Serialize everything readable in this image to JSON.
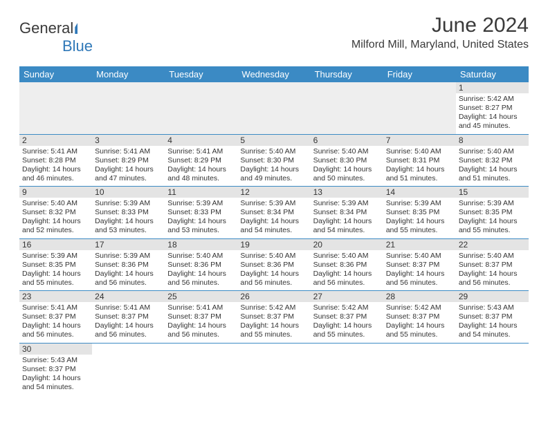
{
  "brand": {
    "part1": "General",
    "part2": "Blue"
  },
  "title": "June 2024",
  "location": "Milford Mill, Maryland, United States",
  "colors": {
    "header_bg": "#3b8ac4",
    "header_text": "#ffffff",
    "daynum_bg": "#e4e4e4",
    "blank_bg": "#eeeeee",
    "row_border": "#3b8ac4",
    "text": "#333333",
    "background": "#ffffff",
    "logo_shape": "#2f78b8"
  },
  "typography": {
    "title_fontsize": 30,
    "location_fontsize": 16,
    "dayhead_fontsize": 13,
    "daynum_fontsize": 12,
    "body_fontsize": 10.5,
    "font_family": "Arial"
  },
  "day_headers": [
    "Sunday",
    "Monday",
    "Tuesday",
    "Wednesday",
    "Thursday",
    "Friday",
    "Saturday"
  ],
  "weeks": [
    [
      null,
      null,
      null,
      null,
      null,
      null,
      {
        "n": "1",
        "sr": "Sunrise: 5:42 AM",
        "ss": "Sunset: 8:27 PM",
        "d1": "Daylight: 14 hours",
        "d2": "and 45 minutes."
      }
    ],
    [
      {
        "n": "2",
        "sr": "Sunrise: 5:41 AM",
        "ss": "Sunset: 8:28 PM",
        "d1": "Daylight: 14 hours",
        "d2": "and 46 minutes."
      },
      {
        "n": "3",
        "sr": "Sunrise: 5:41 AM",
        "ss": "Sunset: 8:29 PM",
        "d1": "Daylight: 14 hours",
        "d2": "and 47 minutes."
      },
      {
        "n": "4",
        "sr": "Sunrise: 5:41 AM",
        "ss": "Sunset: 8:29 PM",
        "d1": "Daylight: 14 hours",
        "d2": "and 48 minutes."
      },
      {
        "n": "5",
        "sr": "Sunrise: 5:40 AM",
        "ss": "Sunset: 8:30 PM",
        "d1": "Daylight: 14 hours",
        "d2": "and 49 minutes."
      },
      {
        "n": "6",
        "sr": "Sunrise: 5:40 AM",
        "ss": "Sunset: 8:30 PM",
        "d1": "Daylight: 14 hours",
        "d2": "and 50 minutes."
      },
      {
        "n": "7",
        "sr": "Sunrise: 5:40 AM",
        "ss": "Sunset: 8:31 PM",
        "d1": "Daylight: 14 hours",
        "d2": "and 51 minutes."
      },
      {
        "n": "8",
        "sr": "Sunrise: 5:40 AM",
        "ss": "Sunset: 8:32 PM",
        "d1": "Daylight: 14 hours",
        "d2": "and 51 minutes."
      }
    ],
    [
      {
        "n": "9",
        "sr": "Sunrise: 5:40 AM",
        "ss": "Sunset: 8:32 PM",
        "d1": "Daylight: 14 hours",
        "d2": "and 52 minutes."
      },
      {
        "n": "10",
        "sr": "Sunrise: 5:39 AM",
        "ss": "Sunset: 8:33 PM",
        "d1": "Daylight: 14 hours",
        "d2": "and 53 minutes."
      },
      {
        "n": "11",
        "sr": "Sunrise: 5:39 AM",
        "ss": "Sunset: 8:33 PM",
        "d1": "Daylight: 14 hours",
        "d2": "and 53 minutes."
      },
      {
        "n": "12",
        "sr": "Sunrise: 5:39 AM",
        "ss": "Sunset: 8:34 PM",
        "d1": "Daylight: 14 hours",
        "d2": "and 54 minutes."
      },
      {
        "n": "13",
        "sr": "Sunrise: 5:39 AM",
        "ss": "Sunset: 8:34 PM",
        "d1": "Daylight: 14 hours",
        "d2": "and 54 minutes."
      },
      {
        "n": "14",
        "sr": "Sunrise: 5:39 AM",
        "ss": "Sunset: 8:35 PM",
        "d1": "Daylight: 14 hours",
        "d2": "and 55 minutes."
      },
      {
        "n": "15",
        "sr": "Sunrise: 5:39 AM",
        "ss": "Sunset: 8:35 PM",
        "d1": "Daylight: 14 hours",
        "d2": "and 55 minutes."
      }
    ],
    [
      {
        "n": "16",
        "sr": "Sunrise: 5:39 AM",
        "ss": "Sunset: 8:35 PM",
        "d1": "Daylight: 14 hours",
        "d2": "and 55 minutes."
      },
      {
        "n": "17",
        "sr": "Sunrise: 5:39 AM",
        "ss": "Sunset: 8:36 PM",
        "d1": "Daylight: 14 hours",
        "d2": "and 56 minutes."
      },
      {
        "n": "18",
        "sr": "Sunrise: 5:40 AM",
        "ss": "Sunset: 8:36 PM",
        "d1": "Daylight: 14 hours",
        "d2": "and 56 minutes."
      },
      {
        "n": "19",
        "sr": "Sunrise: 5:40 AM",
        "ss": "Sunset: 8:36 PM",
        "d1": "Daylight: 14 hours",
        "d2": "and 56 minutes."
      },
      {
        "n": "20",
        "sr": "Sunrise: 5:40 AM",
        "ss": "Sunset: 8:36 PM",
        "d1": "Daylight: 14 hours",
        "d2": "and 56 minutes."
      },
      {
        "n": "21",
        "sr": "Sunrise: 5:40 AM",
        "ss": "Sunset: 8:37 PM",
        "d1": "Daylight: 14 hours",
        "d2": "and 56 minutes."
      },
      {
        "n": "22",
        "sr": "Sunrise: 5:40 AM",
        "ss": "Sunset: 8:37 PM",
        "d1": "Daylight: 14 hours",
        "d2": "and 56 minutes."
      }
    ],
    [
      {
        "n": "23",
        "sr": "Sunrise: 5:41 AM",
        "ss": "Sunset: 8:37 PM",
        "d1": "Daylight: 14 hours",
        "d2": "and 56 minutes."
      },
      {
        "n": "24",
        "sr": "Sunrise: 5:41 AM",
        "ss": "Sunset: 8:37 PM",
        "d1": "Daylight: 14 hours",
        "d2": "and 56 minutes."
      },
      {
        "n": "25",
        "sr": "Sunrise: 5:41 AM",
        "ss": "Sunset: 8:37 PM",
        "d1": "Daylight: 14 hours",
        "d2": "and 56 minutes."
      },
      {
        "n": "26",
        "sr": "Sunrise: 5:42 AM",
        "ss": "Sunset: 8:37 PM",
        "d1": "Daylight: 14 hours",
        "d2": "and 55 minutes."
      },
      {
        "n": "27",
        "sr": "Sunrise: 5:42 AM",
        "ss": "Sunset: 8:37 PM",
        "d1": "Daylight: 14 hours",
        "d2": "and 55 minutes."
      },
      {
        "n": "28",
        "sr": "Sunrise: 5:42 AM",
        "ss": "Sunset: 8:37 PM",
        "d1": "Daylight: 14 hours",
        "d2": "and 55 minutes."
      },
      {
        "n": "29",
        "sr": "Sunrise: 5:43 AM",
        "ss": "Sunset: 8:37 PM",
        "d1": "Daylight: 14 hours",
        "d2": "and 54 minutes."
      }
    ],
    [
      {
        "n": "30",
        "sr": "Sunrise: 5:43 AM",
        "ss": "Sunset: 8:37 PM",
        "d1": "Daylight: 14 hours",
        "d2": "and 54 minutes."
      },
      null,
      null,
      null,
      null,
      null,
      null
    ]
  ]
}
